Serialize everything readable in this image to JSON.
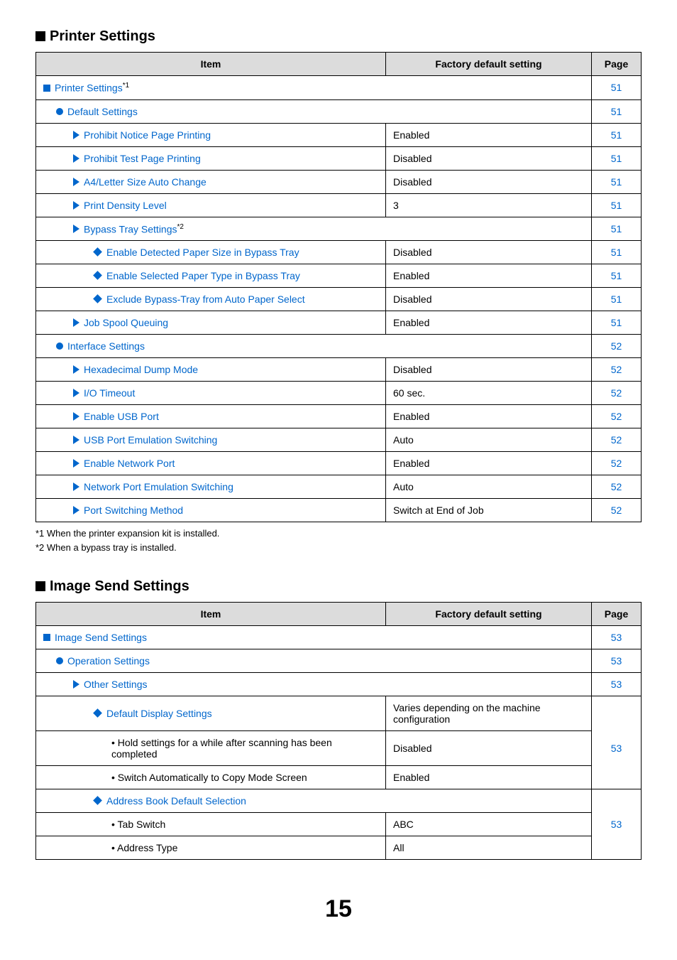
{
  "printer": {
    "title": "Printer Settings",
    "headers": {
      "item": "Item",
      "factory": "Factory default setting",
      "page": "Page"
    },
    "rows": [
      {
        "label": "Printer Settings",
        "sup": "*1",
        "page": "51"
      },
      {
        "label": "Default Settings",
        "page": "51"
      },
      {
        "label": "Prohibit Notice Page Printing",
        "factory": "Enabled",
        "page": "51"
      },
      {
        "label": "Prohibit Test Page Printing",
        "factory": "Disabled",
        "page": "51"
      },
      {
        "label": "A4/Letter Size Auto Change",
        "factory": "Disabled",
        "page": "51"
      },
      {
        "label": "Print Density Level",
        "factory": "3",
        "page": "51"
      },
      {
        "label": "Bypass Tray Settings",
        "sup": "*2",
        "page": "51"
      },
      {
        "label": "Enable Detected Paper Size in Bypass Tray",
        "factory": "Disabled",
        "page": "51"
      },
      {
        "label": "Enable Selected Paper Type in Bypass Tray",
        "factory": "Enabled",
        "page": "51"
      },
      {
        "label": "Exclude Bypass-Tray from Auto Paper Select",
        "factory": "Disabled",
        "page": "51"
      },
      {
        "label": "Job Spool Queuing",
        "factory": "Enabled",
        "page": "51"
      },
      {
        "label": "Interface Settings",
        "page": "52"
      },
      {
        "label": "Hexadecimal Dump Mode",
        "factory": "Disabled",
        "page": "52"
      },
      {
        "label": "I/O Timeout",
        "factory": "60 sec.",
        "page": "52"
      },
      {
        "label": "Enable USB Port",
        "factory": "Enabled",
        "page": "52"
      },
      {
        "label": "USB Port Emulation Switching",
        "factory": "Auto",
        "page": "52"
      },
      {
        "label": "Enable Network Port",
        "factory": "Enabled",
        "page": "52"
      },
      {
        "label": "Network Port Emulation Switching",
        "factory": "Auto",
        "page": "52"
      },
      {
        "label": "Port Switching Method",
        "factory": "Switch at End of Job",
        "page": "52"
      }
    ],
    "footnotes": [
      "*1  When the printer expansion kit is installed.",
      "*2  When a bypass tray is installed."
    ]
  },
  "image": {
    "title": "Image Send Settings",
    "headers": {
      "item": "Item",
      "factory": "Factory default setting",
      "page": "Page"
    },
    "rows": [
      {
        "label": "Image Send Settings",
        "page": "53"
      },
      {
        "label": "Operation Settings",
        "page": "53"
      },
      {
        "label": "Other Settings",
        "page": "53"
      },
      {
        "label": "Default Display Settings",
        "factory": "Varies depending on the machine configuration"
      },
      {
        "label": "• Hold settings for a while after scanning has been completed",
        "factory": "Disabled",
        "page": "53"
      },
      {
        "label": "• Switch Automatically to Copy Mode Screen",
        "factory": "Enabled"
      },
      {
        "label": "Address Book Default Selection"
      },
      {
        "label": "• Tab Switch",
        "factory": "ABC",
        "page": "53"
      },
      {
        "label": "• Address Type",
        "factory": "All"
      }
    ]
  },
  "page_number": "15"
}
